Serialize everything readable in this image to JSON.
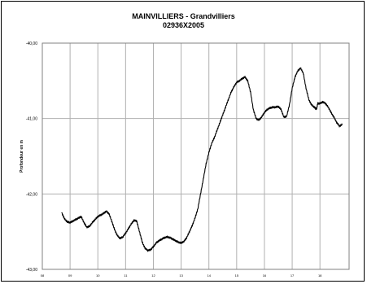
{
  "chart_data": {
    "type": "line",
    "title": "MAINVILLIERS - Grandvilliers",
    "subtitle": "02936X2005",
    "ylabel": "Profondeur en m",
    "xlabel": "",
    "x_ticks": [
      "08",
      "09",
      "10",
      "11",
      "12",
      "13",
      "14",
      "15",
      "16",
      "17",
      "18"
    ],
    "y_ticks": [
      "-40,00",
      "-41,00",
      "-42,00",
      "-43,00"
    ],
    "xlim": [
      8,
      19.05
    ],
    "ylim": [
      -43,
      -40
    ],
    "grid": true,
    "series": [
      {
        "color": "#000000",
        "points": [
          [
            8.7,
            -42.25
          ],
          [
            8.8,
            -42.33
          ],
          [
            8.9,
            -42.37
          ],
          [
            9.0,
            -42.38
          ],
          [
            9.1,
            -42.36
          ],
          [
            9.2,
            -42.34
          ],
          [
            9.3,
            -42.32
          ],
          [
            9.4,
            -42.3
          ],
          [
            9.5,
            -42.38
          ],
          [
            9.6,
            -42.44
          ],
          [
            9.7,
            -42.43
          ],
          [
            9.8,
            -42.38
          ],
          [
            9.9,
            -42.34
          ],
          [
            10.0,
            -42.3
          ],
          [
            10.1,
            -42.28
          ],
          [
            10.2,
            -42.26
          ],
          [
            10.3,
            -42.23
          ],
          [
            10.4,
            -42.26
          ],
          [
            10.5,
            -42.36
          ],
          [
            10.6,
            -42.47
          ],
          [
            10.7,
            -42.55
          ],
          [
            10.8,
            -42.59
          ],
          [
            10.9,
            -42.57
          ],
          [
            11.0,
            -42.52
          ],
          [
            11.1,
            -42.46
          ],
          [
            11.2,
            -42.4
          ],
          [
            11.3,
            -42.35
          ],
          [
            11.4,
            -42.36
          ],
          [
            11.5,
            -42.5
          ],
          [
            11.6,
            -42.64
          ],
          [
            11.7,
            -42.72
          ],
          [
            11.8,
            -42.75
          ],
          [
            11.9,
            -42.74
          ],
          [
            12.0,
            -42.7
          ],
          [
            12.1,
            -42.65
          ],
          [
            12.2,
            -42.62
          ],
          [
            12.3,
            -42.6
          ],
          [
            12.4,
            -42.58
          ],
          [
            12.5,
            -42.57
          ],
          [
            12.6,
            -42.58
          ],
          [
            12.7,
            -42.6
          ],
          [
            12.8,
            -42.62
          ],
          [
            12.9,
            -42.64
          ],
          [
            13.0,
            -42.65
          ],
          [
            13.1,
            -42.63
          ],
          [
            13.2,
            -42.58
          ],
          [
            13.3,
            -42.5
          ],
          [
            13.4,
            -42.42
          ],
          [
            13.5,
            -42.32
          ],
          [
            13.6,
            -42.2
          ],
          [
            13.7,
            -42.0
          ],
          [
            13.8,
            -41.8
          ],
          [
            13.9,
            -41.6
          ],
          [
            14.0,
            -41.45
          ],
          [
            14.1,
            -41.33
          ],
          [
            14.2,
            -41.25
          ],
          [
            14.3,
            -41.15
          ],
          [
            14.4,
            -41.05
          ],
          [
            14.5,
            -40.95
          ],
          [
            14.6,
            -40.85
          ],
          [
            14.7,
            -40.75
          ],
          [
            14.8,
            -40.65
          ],
          [
            14.9,
            -40.58
          ],
          [
            15.0,
            -40.52
          ],
          [
            15.1,
            -40.5
          ],
          [
            15.2,
            -40.47
          ],
          [
            15.3,
            -40.45
          ],
          [
            15.4,
            -40.5
          ],
          [
            15.5,
            -40.65
          ],
          [
            15.6,
            -40.88
          ],
          [
            15.7,
            -41.0
          ],
          [
            15.8,
            -41.02
          ],
          [
            15.9,
            -40.98
          ],
          [
            16.0,
            -40.92
          ],
          [
            16.1,
            -40.88
          ],
          [
            16.2,
            -40.86
          ],
          [
            16.3,
            -40.85
          ],
          [
            16.4,
            -40.85
          ],
          [
            16.5,
            -40.84
          ],
          [
            16.6,
            -40.88
          ],
          [
            16.7,
            -40.98
          ],
          [
            16.8,
            -40.97
          ],
          [
            16.9,
            -40.82
          ],
          [
            17.0,
            -40.6
          ],
          [
            17.1,
            -40.45
          ],
          [
            17.2,
            -40.37
          ],
          [
            17.3,
            -40.33
          ],
          [
            17.4,
            -40.4
          ],
          [
            17.5,
            -40.6
          ],
          [
            17.6,
            -40.75
          ],
          [
            17.7,
            -40.82
          ],
          [
            17.8,
            -40.85
          ],
          [
            17.85,
            -40.87
          ],
          [
            17.88,
            -40.87
          ],
          [
            17.92,
            -40.8
          ],
          [
            18.0,
            -40.8
          ],
          [
            18.1,
            -40.78
          ],
          [
            18.2,
            -40.8
          ],
          [
            18.3,
            -40.85
          ],
          [
            18.4,
            -40.92
          ],
          [
            18.5,
            -40.98
          ],
          [
            18.6,
            -41.05
          ],
          [
            18.7,
            -41.1
          ],
          [
            18.8,
            -41.08
          ]
        ]
      }
    ]
  }
}
